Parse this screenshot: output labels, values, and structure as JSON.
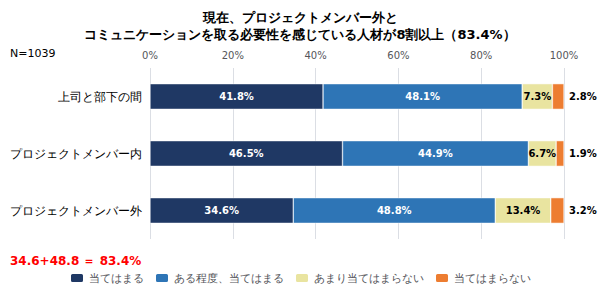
{
  "chart_data": {
    "type": "bar",
    "orientation": "horizontal",
    "stacked": true,
    "data_labels": true,
    "grid": true,
    "legend": "bottom",
    "title": "現在、プロジェクトメンバー外と\nコミュニケーションを取る必要性を感じている人材が8割以上（83.4%）",
    "annotations": [
      {
        "text": "N=1039"
      },
      {
        "text": "34.6+48.8 ＝ 83.4%",
        "color": "#ff0000"
      }
    ],
    "categories": [
      "上司と部下の間",
      "プロジェクトメンバー内",
      "プロジェクトメンバー外"
    ],
    "xlim": [
      0,
      100
    ],
    "xticks": [
      {
        "value": 0,
        "label": "0%"
      },
      {
        "value": 20,
        "label": "20%"
      },
      {
        "value": 40,
        "label": "40%"
      },
      {
        "value": 60,
        "label": "60%"
      },
      {
        "value": 80,
        "label": "80%"
      },
      {
        "value": 100,
        "label": "100%"
      }
    ],
    "series": [
      {
        "name": "当てはまる",
        "color": "#1f3864",
        "values": [
          41.8,
          46.5,
          34.6
        ],
        "value_labels": [
          "41.8%",
          "46.5%",
          "34.6%"
        ]
      },
      {
        "name": "ある程度、当てはまる",
        "color": "#2e75b6",
        "values": [
          48.1,
          44.9,
          48.8
        ],
        "value_labels": [
          "48.1%",
          "44.9%",
          "48.8%"
        ]
      },
      {
        "name": "あまり当てはまらない",
        "color": "#e9e4a0",
        "values": [
          7.3,
          6.7,
          13.4
        ],
        "value_labels": [
          "7.3%",
          "6.7%",
          "13.4%"
        ]
      },
      {
        "name": "当てはまらない",
        "color": "#ed7d31",
        "values": [
          2.8,
          1.9,
          3.2
        ],
        "value_labels": [
          "2.8%",
          "1.9%",
          "3.2%"
        ]
      }
    ]
  }
}
